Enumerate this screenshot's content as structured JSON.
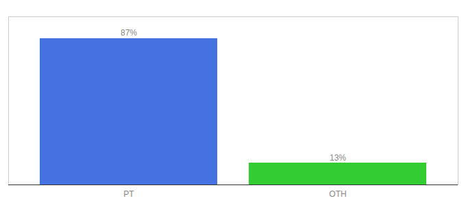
{
  "chart_data": {
    "type": "bar",
    "categories": [
      "PT",
      "OTH"
    ],
    "values": [
      87,
      13
    ],
    "value_labels": [
      "87%",
      "13%"
    ],
    "colors": [
      "#4472e0",
      "#33cc33"
    ],
    "ylim": [
      0,
      100
    ],
    "data_labels": true,
    "tick_labels": "x",
    "grid": false
  }
}
